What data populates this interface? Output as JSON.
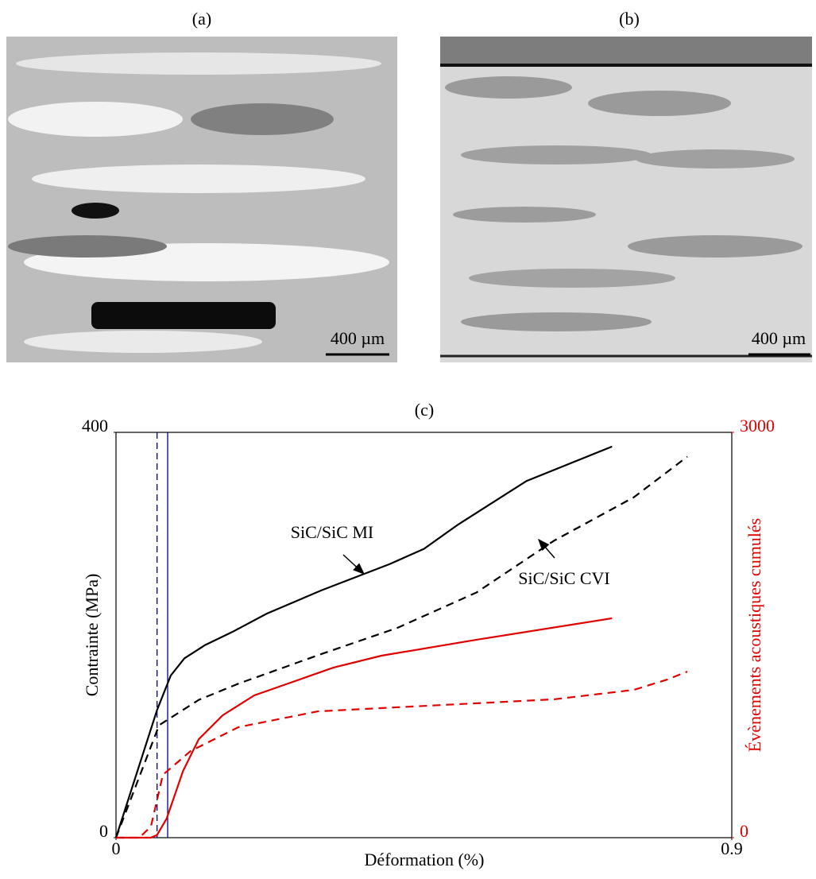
{
  "panels": [
    {
      "label": "(a)",
      "scale_bar": "400 µm"
    },
    {
      "label": "(b)",
      "scale_bar": "400 µm"
    }
  ],
  "chart_data": {
    "type": "line",
    "title": "(c)",
    "xlabel": "Déformation (%)",
    "ylabel": "Contrainte (MPa)",
    "y2label": "Évènements acoustiques cumulés",
    "xlim": [
      0,
      0.9
    ],
    "xticks": [
      0,
      0.9
    ],
    "ylim": [
      0,
      400
    ],
    "yticks": [
      0,
      400
    ],
    "y2lim": [
      0,
      3000
    ],
    "y2ticks": [
      0,
      3000
    ],
    "y2color": "#e00000",
    "series": [
      {
        "color": "#000000",
        "dash": false,
        "x": [
          0,
          0.03,
          0.06,
          0.08,
          0.1,
          0.13,
          0.17,
          0.22,
          0.3,
          0.4,
          0.45,
          0.5,
          0.6,
          0.725
        ],
        "values": [
          0,
          63,
          126,
          160,
          177,
          190,
          203,
          221,
          244,
          270,
          285,
          309,
          352,
          386
        ]
      },
      {
        "color": "#000000",
        "dash": true,
        "x": [
          0,
          0.063,
          0.121,
          0.179,
          0.295,
          0.411,
          0.527,
          0.64,
          0.757,
          0.835
        ],
        "values": [
          0,
          111,
          136,
          152,
          180,
          207,
          242,
          293,
          336,
          376
        ]
      },
      {
        "color": "#e00000",
        "dash": false,
        "axis": "y2",
        "x": [
          0,
          0.051,
          0.06,
          0.074,
          0.098,
          0.121,
          0.156,
          0.202,
          0.318,
          0.388,
          0.527,
          0.725
        ],
        "values": [
          0,
          0,
          20,
          141,
          494,
          729,
          906,
          1053,
          1259,
          1347,
          1465,
          1624
        ]
      },
      {
        "color": "#e00000",
        "dash": true,
        "axis": "y2",
        "x": [
          0,
          0.034,
          0.051,
          0.0685,
          0.109,
          0.179,
          0.295,
          0.411,
          0.64,
          0.757,
          0.806,
          0.835
        ],
        "values": [
          0,
          0,
          82,
          465,
          641,
          818,
          935,
          965,
          1024,
          1094,
          1171,
          1229
        ]
      }
    ],
    "vlines": [
      {
        "x": 0.06,
        "dash": true,
        "color": "#00008b"
      },
      {
        "x": 0.0755,
        "dash": false,
        "color": "#00008b"
      }
    ],
    "annotations": [
      {
        "text": "SiC/SiC MI"
      },
      {
        "text": "SiC/SiC CVI"
      }
    ]
  }
}
